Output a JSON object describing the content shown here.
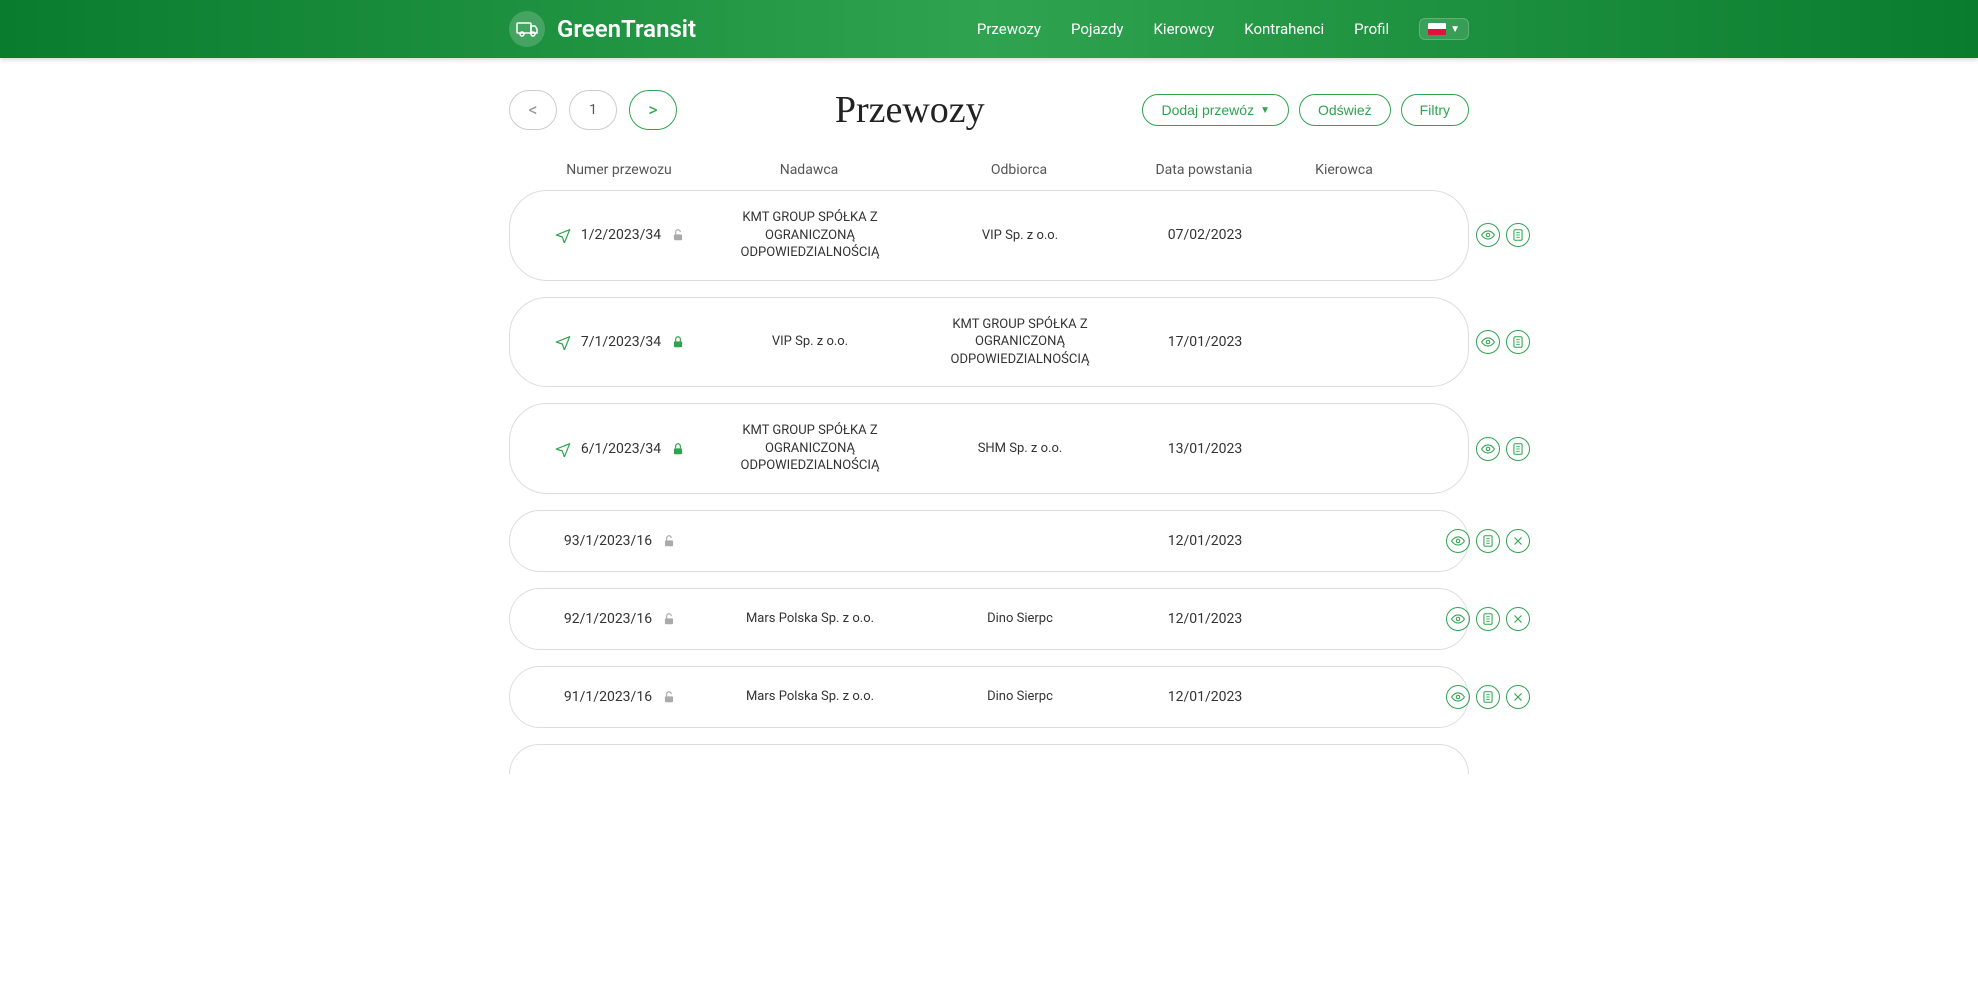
{
  "brand": "GreenTransit",
  "nav": {
    "items": [
      "Przewozy",
      "Pojazdy",
      "Kierowcy",
      "Kontrahenci",
      "Profil"
    ]
  },
  "page": {
    "title": "Przewozy",
    "pager_page": "1",
    "add_btn": "Dodaj przewóz",
    "refresh_btn": "Odśwież",
    "filter_btn": "Filtry"
  },
  "columns": {
    "number": "Numer przewozu",
    "sender": "Nadawca",
    "recipient": "Odbiorca",
    "created": "Data powstania",
    "driver": "Kierowca"
  },
  "rows": [
    {
      "has_plane": true,
      "number": "1/2/2023/34",
      "lock": "open-gray",
      "sender": "KMT GROUP SPÓŁKA Z OGRANICZONĄ ODPOWIEDZIALNOŚCIĄ",
      "recipient": "VIP Sp. z o.o.",
      "created": "07/02/2023",
      "driver": "",
      "actions": [
        "eye",
        "doc"
      ]
    },
    {
      "has_plane": true,
      "number": "7/1/2023/34",
      "lock": "locked-green",
      "sender": "VIP Sp. z o.o.",
      "recipient": "KMT GROUP SPÓŁKA Z OGRANICZONĄ ODPOWIEDZIALNOŚCIĄ",
      "created": "17/01/2023",
      "driver": "",
      "actions": [
        "eye",
        "doc"
      ]
    },
    {
      "has_plane": true,
      "number": "6/1/2023/34",
      "lock": "locked-green",
      "sender": "KMT GROUP SPÓŁKA Z OGRANICZONĄ ODPOWIEDZIALNOŚCIĄ",
      "recipient": "SHM Sp. z o.o.",
      "created": "13/01/2023",
      "driver": "",
      "actions": [
        "eye",
        "doc"
      ]
    },
    {
      "has_plane": false,
      "number": "93/1/2023/16",
      "lock": "open-gray",
      "sender": "",
      "recipient": "",
      "created": "12/01/2023",
      "driver": "",
      "actions": [
        "eye",
        "doc",
        "x"
      ]
    },
    {
      "has_plane": false,
      "number": "92/1/2023/16",
      "lock": "open-gray",
      "sender": "Mars Polska Sp. z o.o.",
      "recipient": "Dino Sierpc",
      "created": "12/01/2023",
      "driver": "",
      "actions": [
        "eye",
        "doc",
        "x"
      ]
    },
    {
      "has_plane": false,
      "number": "91/1/2023/16",
      "lock": "open-gray",
      "sender": "Mars Polska Sp. z o.o.",
      "recipient": "Dino Sierpc",
      "created": "12/01/2023",
      "driver": "",
      "actions": [
        "eye",
        "doc",
        "x"
      ]
    }
  ],
  "colors": {
    "brand_green": "#2fa34f",
    "row_border": "#ddd",
    "text": "#333",
    "muted": "#999"
  }
}
